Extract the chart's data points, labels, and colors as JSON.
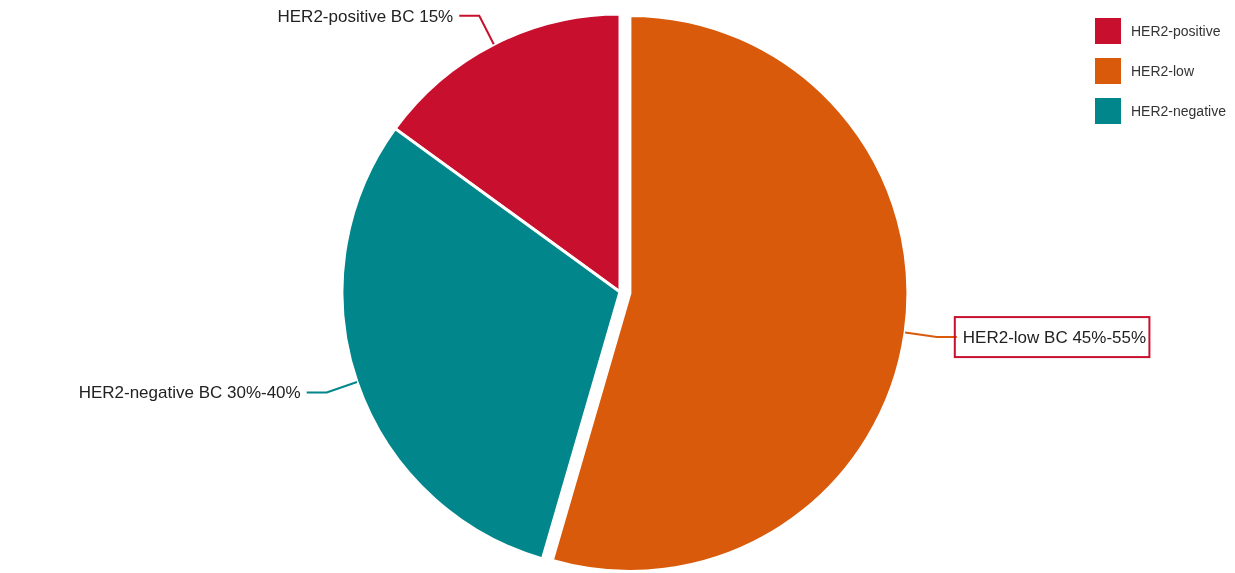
{
  "chart_data": {
    "type": "pie",
    "categories": [
      "HER2-positive",
      "HER2-low",
      "HER2-negative"
    ],
    "values": [
      15,
      54.5,
      30.5
    ],
    "colors": [
      "#c8102e",
      "#d85a0a",
      "#00868b"
    ],
    "annotations": [
      "HER2-positive BC 15%",
      "HER2-low BC 45%-55%",
      "HER2-negative BC 30%-40%"
    ],
    "legend": "top right"
  }
}
